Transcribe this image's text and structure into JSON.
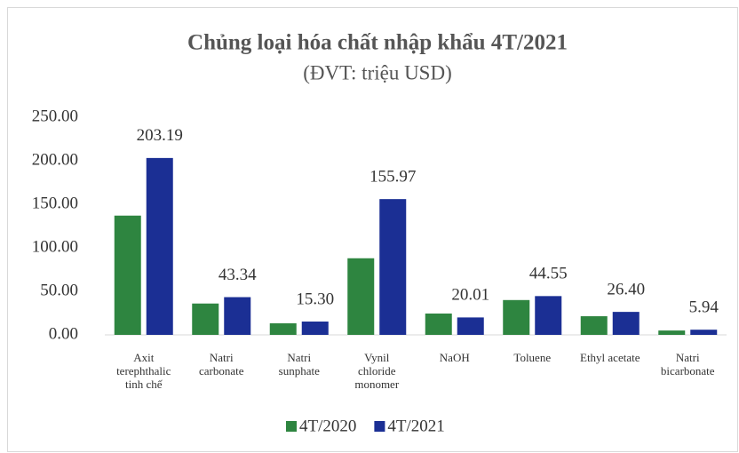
{
  "chart_data": {
    "type": "bar",
    "title": "Chủng loại hóa chất nhập khẩu 4T/2021",
    "subtitle": "(ĐVT: triệu USD)",
    "categories": [
      "Axit terephthalic tinh chế",
      "Natri carbonate",
      "Natri sunphate",
      "Vynil chloride monomer",
      "NaOH",
      "Toluene",
      "Ethyl acetate",
      "Natri bicarbonate"
    ],
    "series": [
      {
        "name": "4T/2020",
        "color": "#2e8540",
        "values": [
          137,
          36,
          13.3,
          88,
          24.5,
          40,
          21.4,
          5
        ]
      },
      {
        "name": "4T/2021",
        "color": "#1b2f94",
        "values": [
          203.19,
          43.34,
          15.3,
          155.97,
          20.01,
          44.55,
          26.4,
          5.94
        ],
        "value_labels": [
          "203.19",
          "43.34",
          "15.30",
          "155.97",
          "20.01",
          "44.55",
          "26.40",
          "5.94"
        ]
      }
    ],
    "ylim": [
      0,
      250
    ],
    "yticks": [
      {
        "value": 0,
        "label": "0.00"
      },
      {
        "value": 50,
        "label": "50.00"
      },
      {
        "value": 100,
        "label": "100.00"
      },
      {
        "value": 150,
        "label": "150.00"
      },
      {
        "value": 200,
        "label": "200.00"
      },
      {
        "value": 250,
        "label": "250.00"
      }
    ],
    "grid": false,
    "legend": "bottom"
  }
}
